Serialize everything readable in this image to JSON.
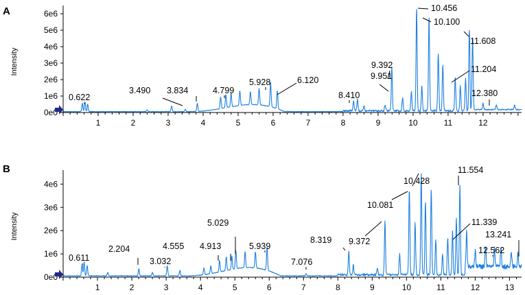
{
  "chart_data": [
    {
      "type": "line",
      "panel_label": "A",
      "ylabel": "Intensity",
      "xlabel": "",
      "xlim": [
        0,
        13.1
      ],
      "ylim": [
        0,
        6500000
      ],
      "x_ticks": [
        1,
        2,
        3,
        4,
        5,
        6,
        7,
        8,
        9,
        10,
        11,
        12
      ],
      "y_ticks": [
        {
          "value": 0,
          "label": "0e0"
        },
        {
          "value": 1000000,
          "label": "1e6"
        },
        {
          "value": 2000000,
          "label": "2e6"
        },
        {
          "value": 3000000,
          "label": "3e6"
        },
        {
          "value": 4000000,
          "label": "4e6"
        },
        {
          "value": 5000000,
          "label": "5e6"
        },
        {
          "value": 6000000,
          "label": "6e6"
        }
      ],
      "line_color": "#1a7fe0",
      "baseline_marker_color": "#1f2a8a",
      "peaks": [
        {
          "x": 0.622,
          "y": 600000,
          "label": "0.622"
        },
        {
          "x": 3.49,
          "y": 150000,
          "label": "3.490"
        },
        {
          "x": 3.834,
          "y": 500000,
          "label": "3.834"
        },
        {
          "x": 4.799,
          "y": 850000,
          "label": "4.799"
        },
        {
          "x": 5.928,
          "y": 1500000,
          "label": "5.928"
        },
        {
          "x": 6.12,
          "y": 1100000,
          "label": "6.120"
        },
        {
          "x": 8.41,
          "y": 700000,
          "label": "8.410"
        },
        {
          "x": 9.392,
          "y": 2700000,
          "label": "9.392"
        },
        {
          "x": 9.951,
          "y": 1200000,
          "label": "9.951"
        },
        {
          "x": 10.1,
          "y": 6300000,
          "label": "10.100"
        },
        {
          "x": 10.456,
          "y": 5800000,
          "label": "10.456"
        },
        {
          "x": 11.204,
          "y": 2100000,
          "label": "11.204"
        },
        {
          "x": 11.608,
          "y": 5000000,
          "label": "11.608"
        },
        {
          "x": 12.38,
          "y": 300000,
          "label": "12.380"
        }
      ]
    },
    {
      "type": "line",
      "panel_label": "B",
      "ylabel": "Intensity",
      "xlabel": "",
      "xlim": [
        0,
        13.35
      ],
      "ylim": [
        0,
        4600000
      ],
      "x_ticks": [
        1,
        2,
        3,
        4,
        5,
        6,
        7,
        8,
        9,
        10,
        11,
        12,
        13
      ],
      "y_ticks": [
        {
          "value": 0,
          "label": "0e0"
        },
        {
          "value": 1000000,
          "label": "1e6"
        },
        {
          "value": 2000000,
          "label": "2e6"
        },
        {
          "value": 3000000,
          "label": "3e6"
        },
        {
          "value": 4000000,
          "label": "4e6"
        }
      ],
      "line_color": "#1a7fe0",
      "baseline_marker_color": "#1f2a8a",
      "peaks": [
        {
          "x": 0.611,
          "y": 600000,
          "label": "0.611"
        },
        {
          "x": 2.204,
          "y": 300000,
          "label": "2.204"
        },
        {
          "x": 3.032,
          "y": 450000,
          "label": "3.032"
        },
        {
          "x": 4.555,
          "y": 500000,
          "label": "4.555"
        },
        {
          "x": 4.913,
          "y": 600000,
          "label": "4.913"
        },
        {
          "x": 5.029,
          "y": 800000,
          "label": "5.029"
        },
        {
          "x": 5.939,
          "y": 1000000,
          "label": "5.939"
        },
        {
          "x": 7.076,
          "y": 100000,
          "label": "7.076"
        },
        {
          "x": 8.319,
          "y": 1000000,
          "label": "8.319"
        },
        {
          "x": 9.372,
          "y": 2300000,
          "label": "9.372"
        },
        {
          "x": 10.081,
          "y": 3700000,
          "label": "10.081"
        },
        {
          "x": 10.428,
          "y": 4400000,
          "label": "10.428"
        },
        {
          "x": 11.339,
          "y": 1900000,
          "label": "11.339"
        },
        {
          "x": 11.554,
          "y": 3900000,
          "label": "11.554"
        },
        {
          "x": 12.562,
          "y": 800000,
          "label": "12.562"
        },
        {
          "x": 13.241,
          "y": 550000,
          "label": "13.241"
        }
      ]
    }
  ]
}
